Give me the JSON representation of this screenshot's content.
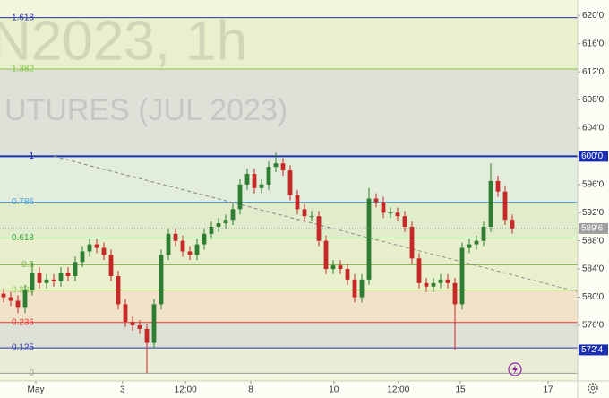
{
  "chart_data": {
    "type": "candlestick",
    "watermark": [
      "N2023, 1h",
      "UTURES (JUL 2023)"
    ],
    "xlim": [
      -0.5,
      80.125
    ],
    "xticks": [
      {
        "value": 4.5,
        "label": "May"
      },
      {
        "value": 16.6,
        "label": "3"
      },
      {
        "value": 25.4,
        "label": "12:00"
      },
      {
        "value": 34.5,
        "label": "8"
      },
      {
        "value": 46.1,
        "label": "10"
      },
      {
        "value": 55.1,
        "label": "12:00"
      },
      {
        "value": 63.75,
        "label": "15"
      },
      {
        "value": 76,
        "label": "17"
      }
    ],
    "ylim": [
      568.1,
      622.2
    ],
    "yticks": [
      {
        "value": 620,
        "label": "620'0"
      },
      {
        "value": 616,
        "label": "616'0"
      },
      {
        "value": 612,
        "label": "612'0"
      },
      {
        "value": 608,
        "label": "608'0"
      },
      {
        "value": 604,
        "label": "604'0"
      },
      {
        "value": 596,
        "label": "596'0"
      },
      {
        "value": 592,
        "label": "592'0"
      },
      {
        "value": 588,
        "label": "588'0"
      },
      {
        "value": 584,
        "label": "584'0"
      },
      {
        "value": 580,
        "label": "580'0"
      },
      {
        "value": 576,
        "label": "576'0"
      }
    ],
    "price_labels": [
      {
        "value": 600,
        "label": "600'0",
        "color": "#1a2fb0"
      },
      {
        "value": 572.5,
        "label": "572'4",
        "color": "#1a2fb0"
      }
    ],
    "last_price": {
      "value": 589.75,
      "label": "589'6",
      "color": "#9e9e9e"
    },
    "up_color": "#2e7d32",
    "down_color": "#c62828",
    "fib_levels": [
      {
        "label": "1.618",
        "value": 619.7,
        "color": "#2a35a8"
      },
      {
        "label": "1.382",
        "value": 612.4,
        "color": "#8bc34a"
      },
      {
        "label": "1",
        "value": 600,
        "color": "#1a2fb0"
      },
      {
        "label": "0.786",
        "value": 593.5,
        "color": "#4fa3d8"
      },
      {
        "label": "0.618",
        "value": 588.4,
        "color": "#43a047"
      },
      {
        "label": "0.5",
        "value": 584.6,
        "color": "#7cb342"
      },
      {
        "label": "0.382",
        "value": 581,
        "color": "#8bc34a"
      },
      {
        "label": "0.236",
        "value": 576.4,
        "color": "#e53935"
      },
      {
        "label": "0.125",
        "value": 572.8,
        "color": "#2a35a8"
      },
      {
        "label": "0",
        "value": 569.2,
        "color": "#9e9e9e"
      }
    ],
    "trendline": {
      "x": [
        7,
        80
      ],
      "y": [
        600,
        580.8
      ]
    },
    "open": [
      580.5,
      580,
      579.5,
      578.5,
      581,
      583.5,
      582,
      582.5,
      582.25,
      583.5,
      583,
      585,
      586.5,
      587.5,
      587,
      586,
      583,
      579,
      576.5,
      576,
      575.5,
      573.5,
      579,
      586,
      589,
      588,
      586.5,
      586,
      587.5,
      589,
      590,
      590.5,
      591,
      592.5,
      596,
      597.5,
      595.5,
      596,
      598.5,
      599,
      598,
      594.5,
      592.5,
      591.5,
      591.5,
      588,
      584,
      584.5,
      584,
      582.5,
      580,
      582.5,
      594,
      593.5,
      592,
      592,
      591.5,
      590,
      585.5,
      582,
      581.5,
      582,
      582.5,
      582,
      579,
      587,
      587.5,
      588,
      590,
      596.5,
      595,
      591
    ],
    "high": [
      581.25,
      580.75,
      580.25,
      581.75,
      585,
      584.25,
      583.25,
      583.25,
      584.25,
      584.25,
      585.75,
      587.25,
      588.25,
      588.25,
      587.75,
      586.75,
      583.75,
      579.75,
      577.25,
      576.75,
      576.25,
      579.75,
      586.75,
      589.75,
      589.75,
      588.75,
      587.25,
      588.25,
      589.75,
      590.75,
      591.25,
      591.75,
      593.25,
      596.75,
      598.25,
      598.25,
      596.75,
      599.25,
      600.5,
      599.75,
      598.75,
      595.25,
      593.25,
      592.25,
      592.25,
      588.75,
      585.25,
      585.25,
      584.75,
      583.25,
      583.25,
      595.5,
      594.75,
      594.25,
      592.75,
      592.75,
      592.25,
      590.75,
      586.25,
      582.75,
      582.75,
      583.25,
      583.25,
      582.75,
      587.75,
      588.25,
      588.75,
      590.75,
      599,
      597.25,
      595.75,
      591.75
    ],
    "low": [
      579.25,
      578.75,
      577.75,
      577.75,
      580.25,
      581.25,
      581.25,
      581.5,
      581.5,
      582.25,
      582.25,
      584.25,
      585.75,
      586.25,
      585.25,
      582.25,
      578.25,
      575.75,
      575.25,
      574.75,
      569.25,
      572.75,
      578.25,
      585.25,
      587.25,
      585.75,
      585.25,
      585.25,
      586.75,
      588.25,
      589.25,
      589.75,
      590.25,
      591.75,
      595.25,
      594.75,
      594.75,
      595.25,
      597.75,
      597.25,
      593.75,
      591.75,
      590.75,
      590.75,
      587.25,
      583.25,
      583.25,
      583.25,
      581.75,
      579.25,
      579.25,
      581.75,
      592.75,
      591.25,
      591.25,
      590.75,
      589.25,
      584.75,
      581.25,
      580.75,
      580.75,
      581.25,
      581.25,
      572.5,
      578.25,
      586.25,
      586.75,
      587.25,
      589.25,
      594.25,
      590.25,
      589
    ],
    "close": [
      580,
      579.5,
      578.5,
      581,
      583.5,
      582,
      582.5,
      582.25,
      583.5,
      583,
      585,
      586.5,
      587.5,
      587,
      586,
      583,
      579,
      576.5,
      576,
      575.5,
      573.5,
      579,
      586,
      589,
      588,
      586.5,
      586,
      587.5,
      589,
      590,
      590.5,
      591,
      592.5,
      596,
      597.5,
      595.5,
      596,
      598.5,
      599,
      598,
      594.5,
      592.5,
      591.5,
      591.5,
      588,
      584,
      584.5,
      584,
      582.5,
      580,
      582.5,
      594,
      593.5,
      592,
      592,
      591.5,
      590,
      585.5,
      582,
      581.5,
      582,
      582.5,
      582,
      579,
      587,
      587.5,
      588,
      590,
      596.5,
      595,
      591,
      589.75
    ]
  }
}
